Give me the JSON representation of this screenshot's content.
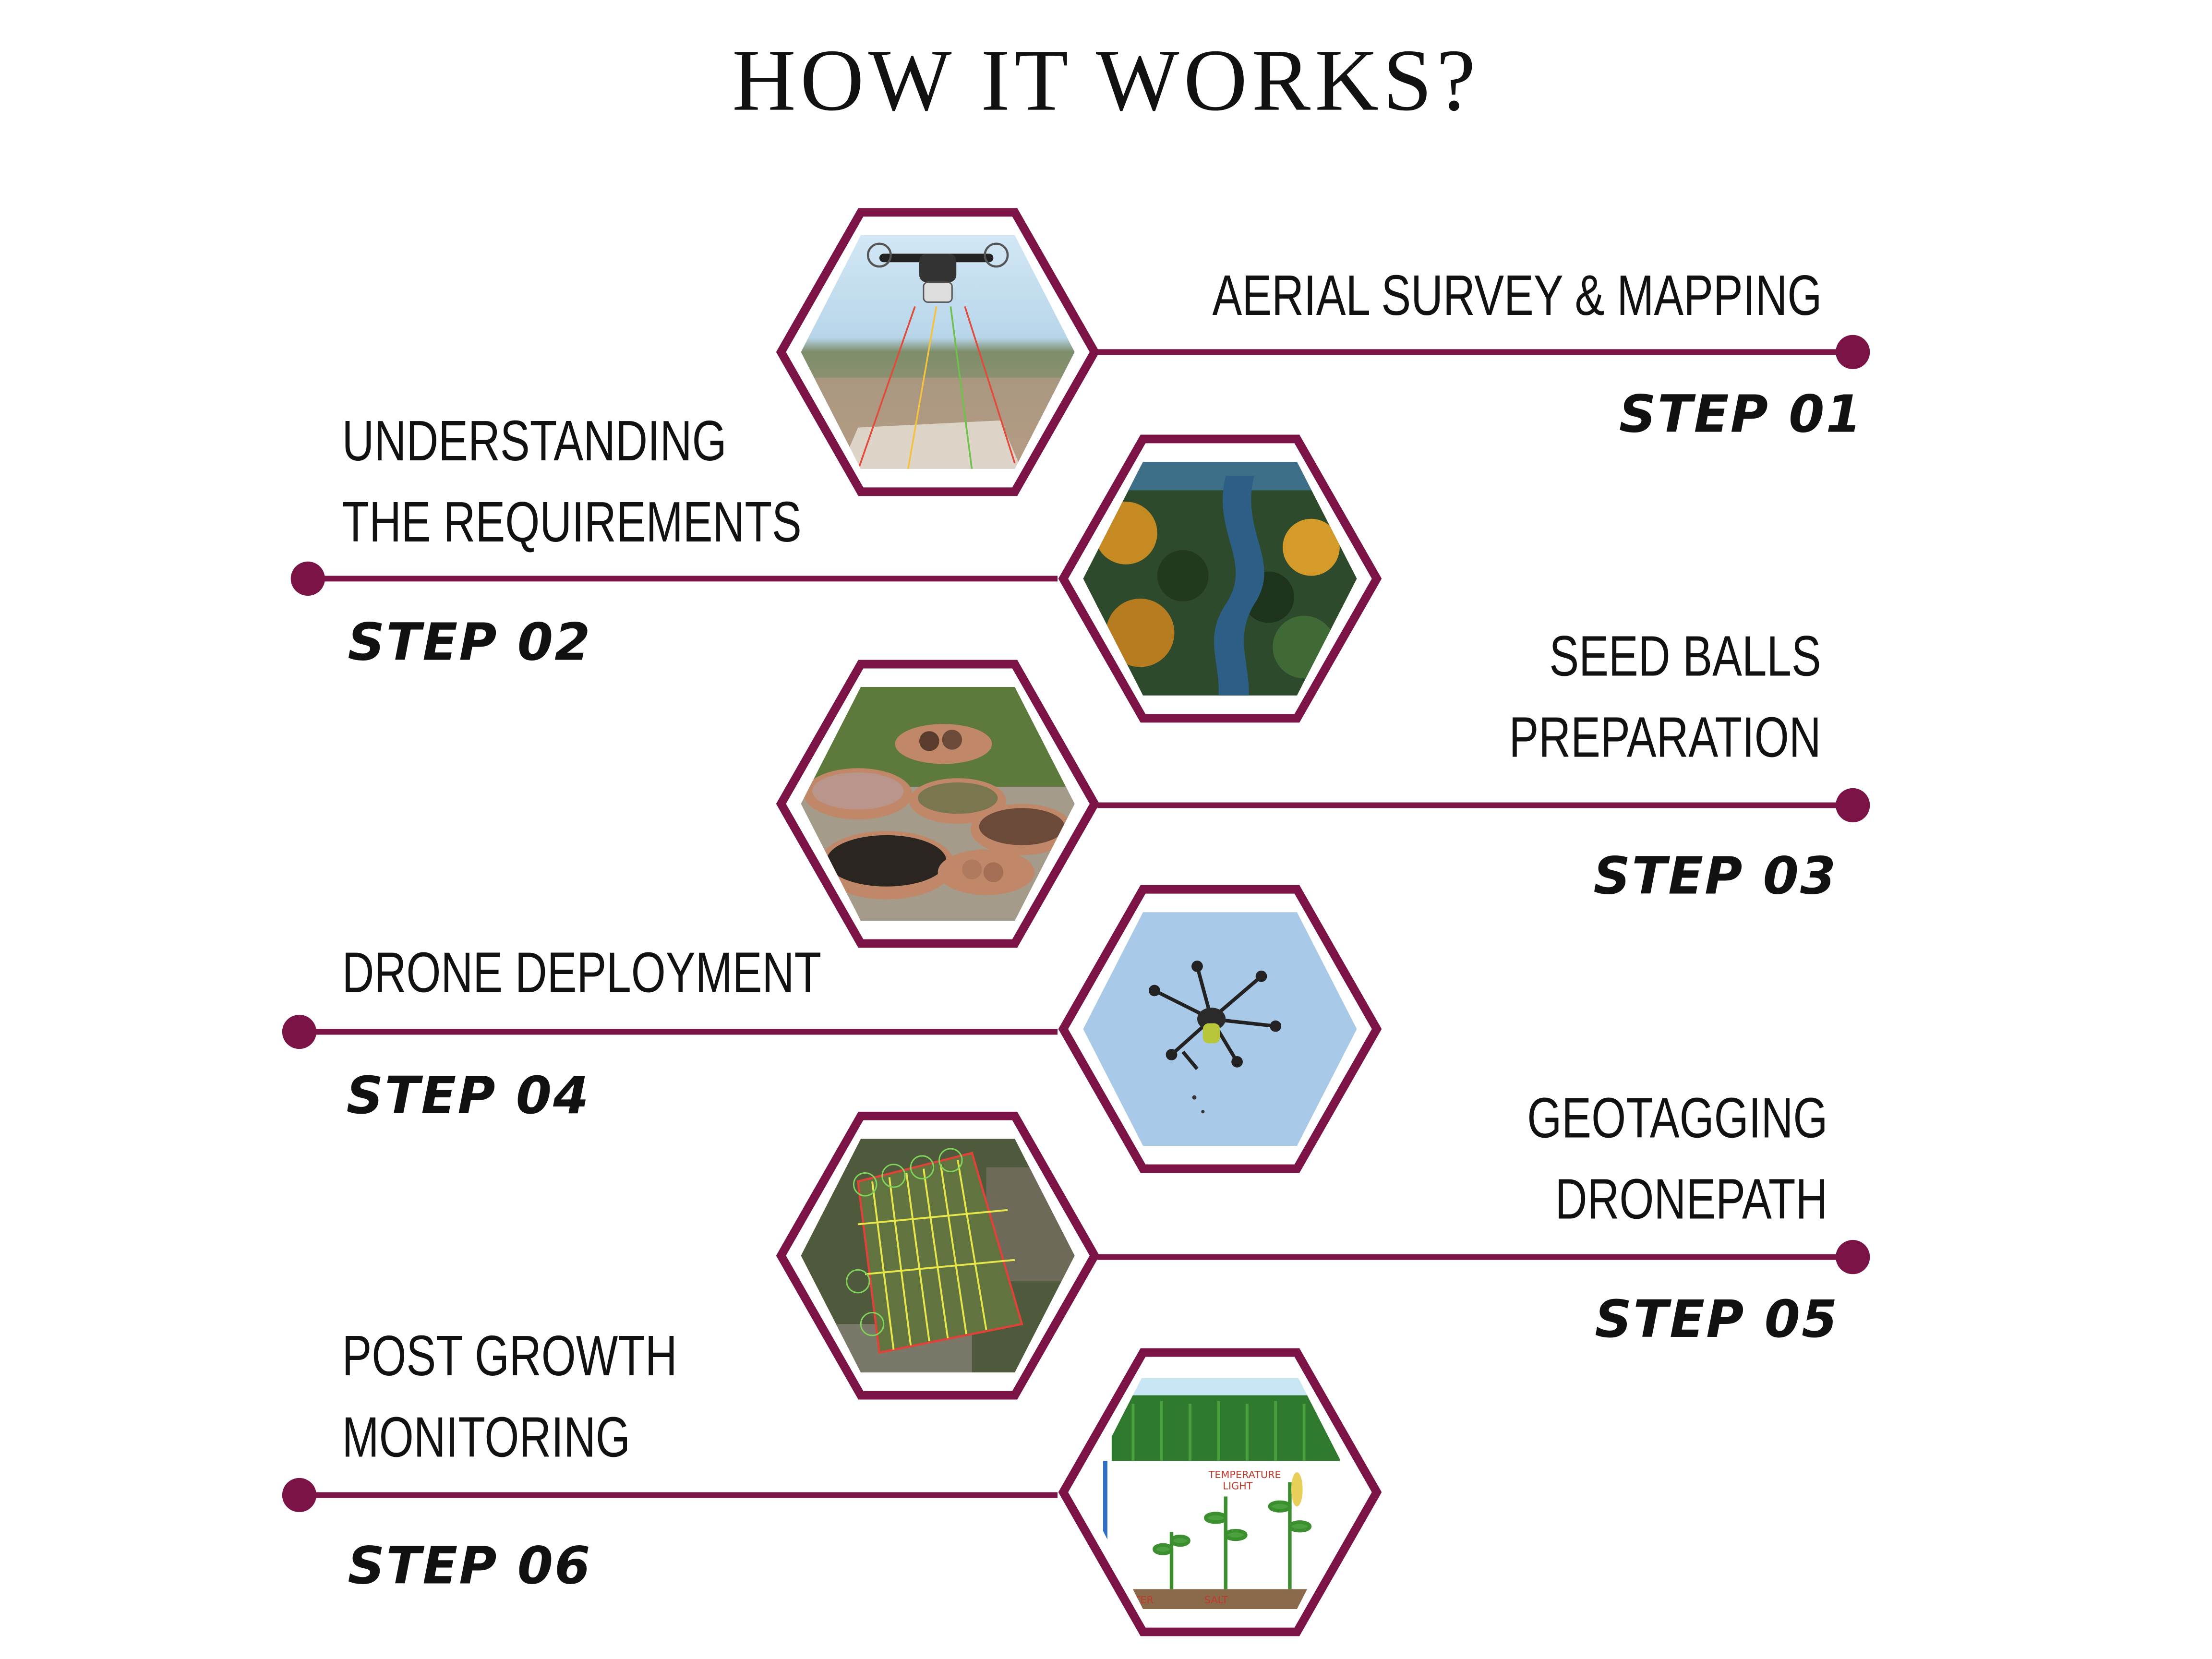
{
  "title": "HOW IT WORKS?",
  "accent_color": "#7b1346",
  "steps": [
    {
      "step": "STEP 01",
      "lines": [
        "AERIAL SURVEY & MAPPING"
      ],
      "image_icon": "drone-survey-image",
      "side": "right"
    },
    {
      "step": "STEP 02",
      "lines": [
        "UNDERSTANDING",
        "THE REQUIREMENTS"
      ],
      "image_icon": "forest-river-image",
      "side": "left"
    },
    {
      "step": "STEP 03",
      "lines": [
        "SEED BALLS",
        "PREPARATION"
      ],
      "image_icon": "seed-balls-image",
      "side": "right"
    },
    {
      "step": "STEP 04",
      "lines": [
        "DRONE DEPLOYMENT"
      ],
      "image_icon": "drone-sky-image",
      "side": "left"
    },
    {
      "step": "STEP 05",
      "lines": [
        "GEOTAGGING",
        "DRONEPATH"
      ],
      "image_icon": "map-path-image",
      "side": "right"
    },
    {
      "step": "STEP 06",
      "lines": [
        "POST GROWTH",
        "MONITORING"
      ],
      "image_icon": "crop-growth-image",
      "side": "left"
    }
  ]
}
